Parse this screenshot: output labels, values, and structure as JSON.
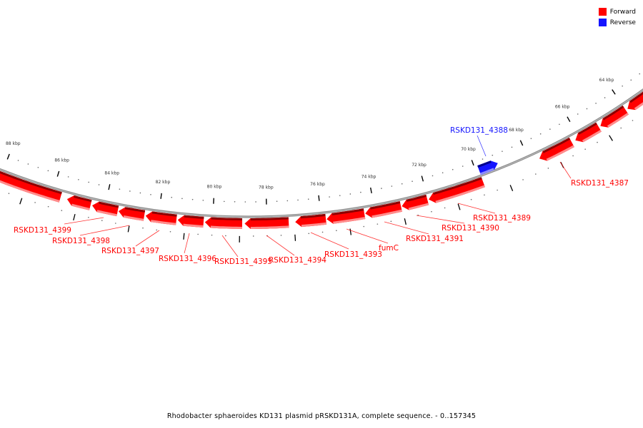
{
  "legend": {
    "forward_label": "Forward",
    "reverse_label": "Reverse",
    "forward_color": "#ff0000",
    "reverse_color": "#1414ff"
  },
  "title": "Rhodobacter sphaeroides KD131 plasmid pRSKD131A, complete sequence. - 0..157345",
  "sequence_length": 157345,
  "ruler": {
    "tick_labels": [
      {
        "kbp": 64,
        "label": "64 kbp"
      },
      {
        "kbp": 66,
        "label": "66 kbp"
      },
      {
        "kbp": 68,
        "label": "68 kbp"
      },
      {
        "kbp": 70,
        "label": "70 kbp"
      },
      {
        "kbp": 72,
        "label": "72 kbp"
      },
      {
        "kbp": 74,
        "label": "74 kbp"
      },
      {
        "kbp": 76,
        "label": "76 kbp"
      },
      {
        "kbp": 78,
        "label": "78 kbp"
      },
      {
        "kbp": 80,
        "label": "80 kbp"
      },
      {
        "kbp": 82,
        "label": "82 kbp"
      },
      {
        "kbp": 84,
        "label": "84 kbp"
      },
      {
        "kbp": 86,
        "label": "86 kbp"
      },
      {
        "kbp": 88,
        "label": "88 kbp"
      }
    ]
  },
  "genes": [
    {
      "start": 85.67,
      "end": 89.5,
      "strand": "forward"
    },
    {
      "start": 84.53,
      "end": 85.42,
      "strand": "forward"
    },
    {
      "start": 83.51,
      "end": 84.47,
      "strand": "forward"
    },
    {
      "start": 82.52,
      "end": 83.48,
      "strand": "forward"
    },
    {
      "start": 81.33,
      "end": 82.47,
      "strand": "forward"
    },
    {
      "start": 80.33,
      "end": 81.28,
      "strand": "forward"
    },
    {
      "start": 78.91,
      "end": 80.28,
      "strand": "forward"
    },
    {
      "start": 77.2,
      "end": 78.82,
      "strand": "forward"
    },
    {
      "start": 75.83,
      "end": 76.96,
      "strand": "forward"
    },
    {
      "start": 74.4,
      "end": 75.8,
      "strand": "forward"
    },
    {
      "start": 73.03,
      "end": 74.37,
      "strand": "forward"
    },
    {
      "start": 72.03,
      "end": 73.0,
      "strand": "forward"
    },
    {
      "start": 69.88,
      "end": 71.98,
      "strand": "forward"
    },
    {
      "start": 69.12,
      "end": 69.87,
      "strand": "reverse"
    },
    {
      "start": 66.31,
      "end": 67.64,
      "strand": "forward"
    },
    {
      "start": 65.17,
      "end": 66.16,
      "strand": "forward"
    },
    {
      "start": 64.0,
      "end": 65.1,
      "strand": "forward"
    },
    {
      "start": 61.5,
      "end": 63.92,
      "strand": "forward"
    }
  ],
  "labels": [
    {
      "text": "RSKD131_4399",
      "strand": "forward"
    },
    {
      "text": "RSKD131_4398",
      "strand": "forward"
    },
    {
      "text": "RSKD131_4397",
      "strand": "forward"
    },
    {
      "text": "RSKD131_4396",
      "strand": "forward"
    },
    {
      "text": "RSKD131_4395",
      "strand": "forward"
    },
    {
      "text": "RSKD131_4394",
      "strand": "forward"
    },
    {
      "text": "RSKD131_4393",
      "strand": "forward"
    },
    {
      "text": "fumC",
      "strand": "forward"
    },
    {
      "text": "RSKD131_4391",
      "strand": "forward"
    },
    {
      "text": "RSKD131_4390",
      "strand": "forward"
    },
    {
      "text": "RSKD131_4389",
      "strand": "forward"
    },
    {
      "text": "RSKD131_4388",
      "strand": "reverse"
    },
    {
      "text": "RSKD131_4387",
      "strand": "forward"
    }
  ]
}
